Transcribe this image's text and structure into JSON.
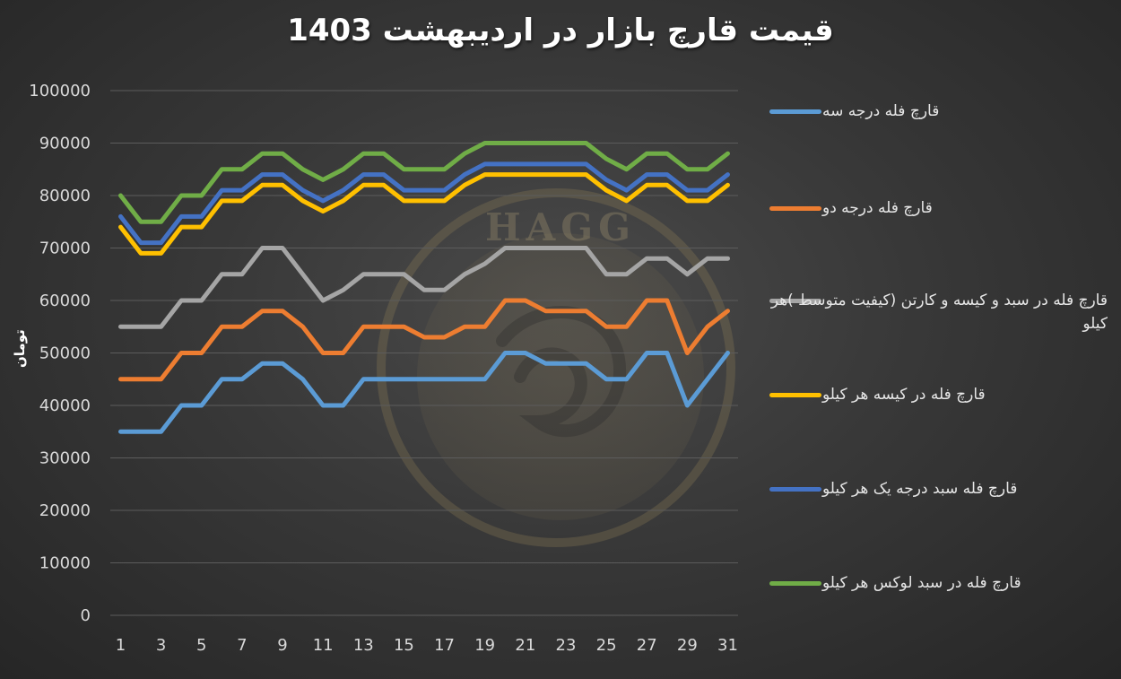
{
  "chart_data": {
    "type": "line",
    "title": "قیمت قارچ بازار در اردیبهشت 1403",
    "xlabel": "",
    "ylabel": "تومان",
    "ylim": [
      0,
      100000
    ],
    "yticks": [
      0,
      10000,
      20000,
      30000,
      40000,
      50000,
      60000,
      70000,
      80000,
      90000,
      100000
    ],
    "ytick_labels": [
      "0",
      "10000",
      "20000",
      "30000",
      "40000",
      "50000",
      "60000",
      "70000",
      "80000",
      "90000",
      "100000"
    ],
    "x": [
      1,
      2,
      3,
      4,
      5,
      6,
      7,
      8,
      9,
      10,
      11,
      12,
      13,
      14,
      15,
      16,
      17,
      18,
      19,
      20,
      21,
      22,
      23,
      24,
      25,
      26,
      27,
      28,
      29,
      30,
      31
    ],
    "xtick_labels": [
      "1",
      "3",
      "5",
      "7",
      "9",
      "11",
      "13",
      "15",
      "17",
      "19",
      "21",
      "23",
      "25",
      "27",
      "29",
      "31"
    ],
    "grid": "horizontal",
    "legend_position": "right",
    "watermark": "HAGG",
    "series": [
      {
        "name": "قارچ فله درجه سه",
        "color": "#5b9bd5",
        "values": [
          35000,
          35000,
          35000,
          40000,
          40000,
          45000,
          45000,
          48000,
          48000,
          45000,
          40000,
          40000,
          45000,
          45000,
          45000,
          45000,
          45000,
          45000,
          45000,
          50000,
          50000,
          48000,
          48000,
          48000,
          45000,
          45000,
          50000,
          50000,
          40000,
          45000,
          50000
        ]
      },
      {
        "name": "قارچ فله درجه دو",
        "color": "#ed7d31",
        "values": [
          45000,
          45000,
          45000,
          50000,
          50000,
          55000,
          55000,
          58000,
          58000,
          55000,
          50000,
          50000,
          55000,
          55000,
          55000,
          53000,
          53000,
          55000,
          55000,
          60000,
          60000,
          58000,
          58000,
          58000,
          55000,
          55000,
          60000,
          60000,
          50000,
          55000,
          58000
        ]
      },
      {
        "name": "قارچ فله در سبد و کیسه و کارتن (کیفیت متوسط )هر کیلو",
        "color": "#a5a5a5",
        "values": [
          55000,
          55000,
          55000,
          60000,
          60000,
          65000,
          65000,
          70000,
          70000,
          65000,
          60000,
          62000,
          65000,
          65000,
          65000,
          62000,
          62000,
          65000,
          67000,
          70000,
          70000,
          70000,
          70000,
          70000,
          65000,
          65000,
          68000,
          68000,
          65000,
          68000,
          68000
        ]
      },
      {
        "name": "قارچ فله در کیسه هر کیلو",
        "color": "#ffc000",
        "values": [
          74000,
          69000,
          69000,
          74000,
          74000,
          79000,
          79000,
          82000,
          82000,
          79000,
          77000,
          79000,
          82000,
          82000,
          79000,
          79000,
          79000,
          82000,
          84000,
          84000,
          84000,
          84000,
          84000,
          84000,
          81000,
          79000,
          82000,
          82000,
          79000,
          79000,
          82000
        ]
      },
      {
        "name": "قارچ فله سبد درجه یک هر کیلو",
        "color": "#4472c4",
        "values": [
          76000,
          71000,
          71000,
          76000,
          76000,
          81000,
          81000,
          84000,
          84000,
          81000,
          79000,
          81000,
          84000,
          84000,
          81000,
          81000,
          81000,
          84000,
          86000,
          86000,
          86000,
          86000,
          86000,
          86000,
          83000,
          81000,
          84000,
          84000,
          81000,
          81000,
          84000
        ]
      },
      {
        "name": "قارچ فله در سبد لوکس هر کیلو",
        "color": "#70ad47",
        "values": [
          80000,
          75000,
          75000,
          80000,
          80000,
          85000,
          85000,
          88000,
          88000,
          85000,
          83000,
          85000,
          88000,
          88000,
          85000,
          85000,
          85000,
          88000,
          90000,
          90000,
          90000,
          90000,
          90000,
          90000,
          87000,
          85000,
          88000,
          88000,
          85000,
          85000,
          88000
        ]
      }
    ]
  }
}
